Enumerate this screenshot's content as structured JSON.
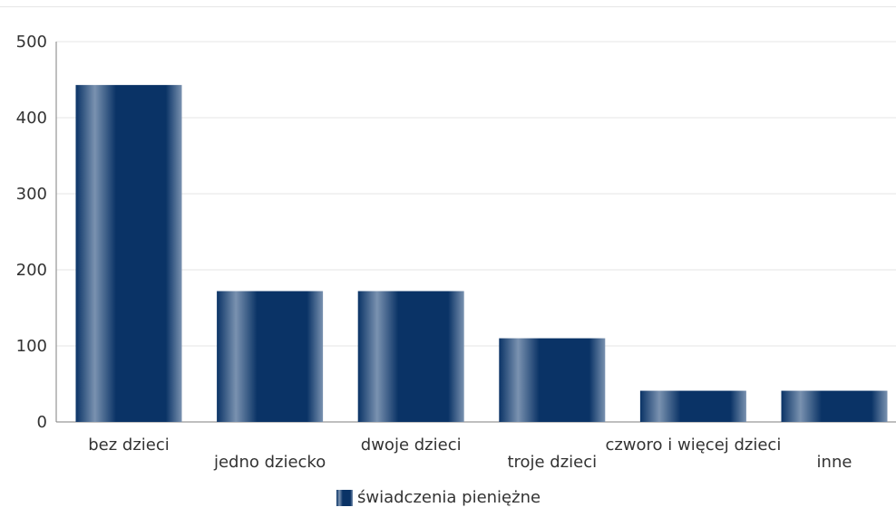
{
  "chart_data": {
    "type": "bar",
    "categories": [
      "bez dzieci",
      "jedno dziecko",
      "dwoje dzieci",
      "troje dzieci",
      "czworo i więcej dzieci",
      "inne"
    ],
    "series": [
      {
        "name": "świadczenia pieniężne",
        "values": [
          443,
          172,
          172,
          110,
          41,
          41
        ]
      }
    ],
    "ylim": [
      0,
      500
    ],
    "yticks": [
      0,
      100,
      200,
      300,
      400,
      500
    ],
    "grid": true,
    "legend_position": "bottom-center",
    "colors": {
      "bar_dark": "#0a3366",
      "bar_light": "#7a92b0",
      "grid": "#e6e6e6",
      "axis": "#7f7f7f"
    }
  }
}
